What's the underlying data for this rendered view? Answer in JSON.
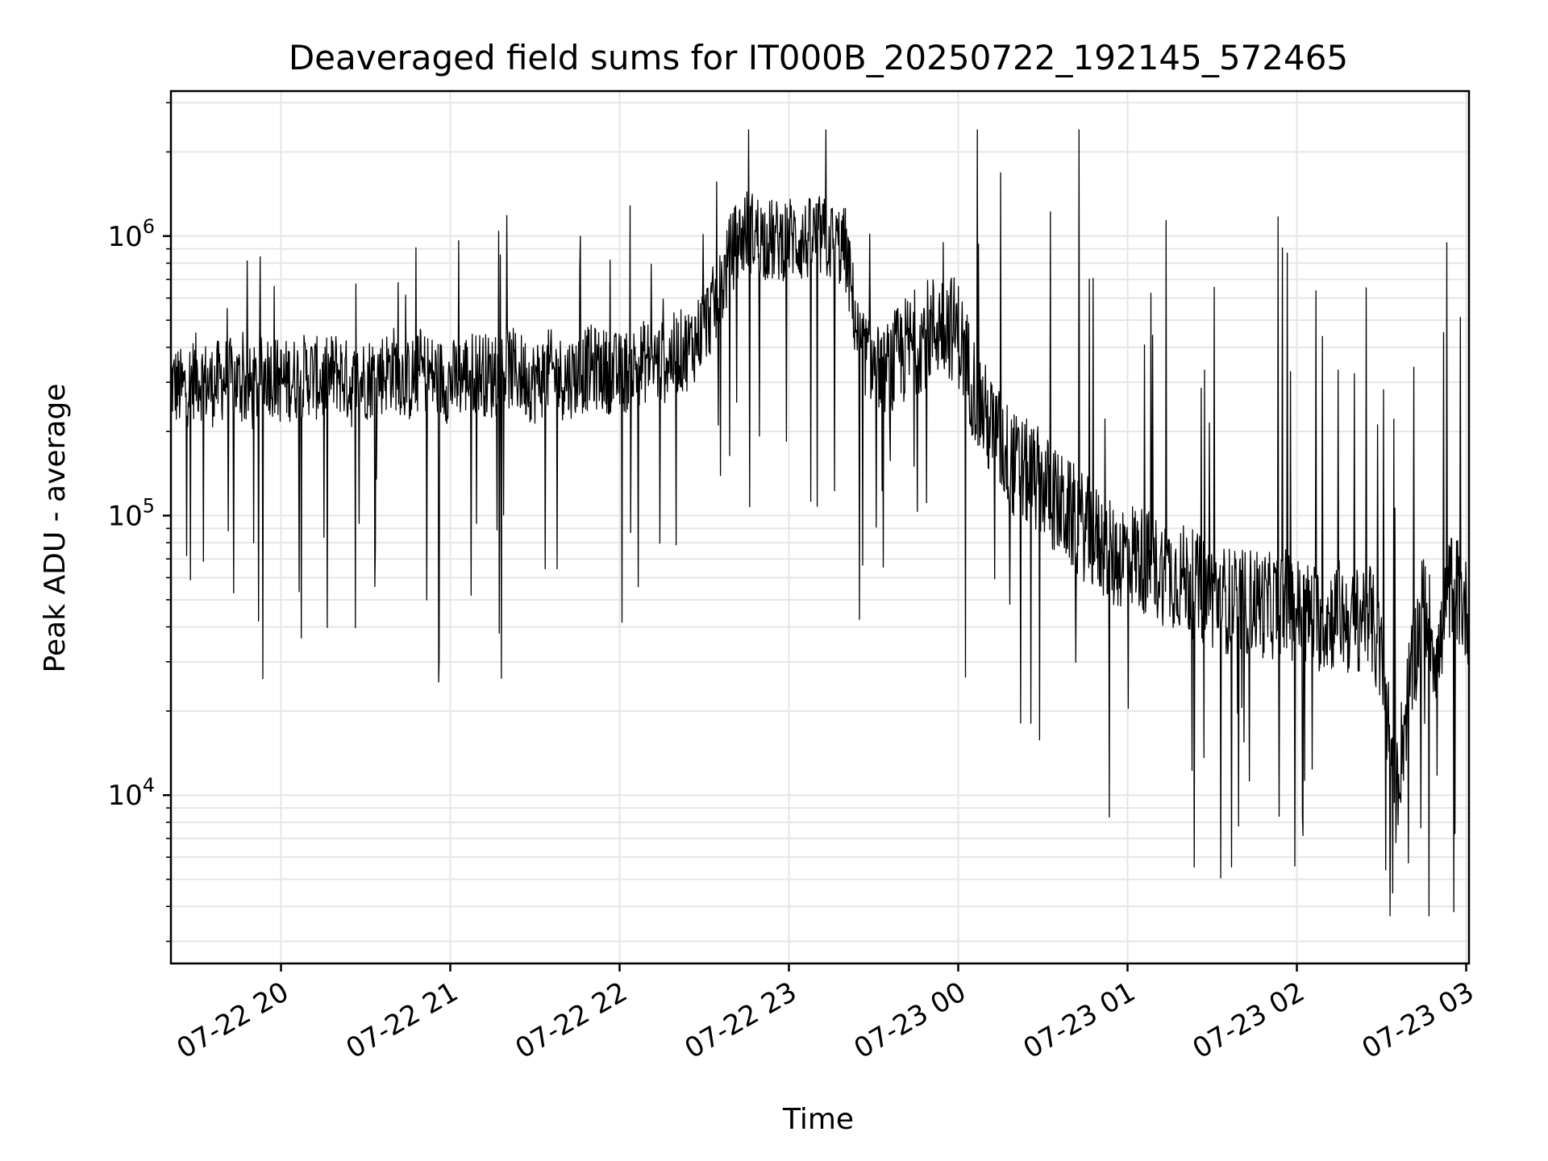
{
  "chart_data": {
    "type": "line",
    "title": "Deaveraged field sums for IT000B_20250722_192145_572465",
    "xlabel": "Time",
    "ylabel": "Peak ADU - average",
    "yscale": "log",
    "ylim": [
      2500,
      3300000
    ],
    "xlim": [
      "2025-07-22 19:21",
      "2025-07-23 03:01"
    ],
    "grid": true,
    "line_color": "#000000",
    "x_ticks": [
      "07-22 20",
      "07-22 21",
      "07-22 22",
      "07-22 23",
      "07-23 00",
      "07-23 01",
      "07-23 02",
      "07-23 03"
    ],
    "y_ticks": [
      {
        "base": "10",
        "exp": "4",
        "value": 10000
      },
      {
        "base": "10",
        "exp": "5",
        "value": 100000
      },
      {
        "base": "10",
        "exp": "6",
        "value": 1000000
      }
    ],
    "series": [
      {
        "x": [
          "2025-07-22 19:21",
          "2025-07-22 19:25",
          "2025-07-22 19:30",
          "2025-07-22 19:35",
          "2025-07-22 19:40",
          "2025-07-22 19:45",
          "2025-07-22 19:50",
          "2025-07-22 19:55",
          "2025-07-22 20:00",
          "2025-07-22 20:05",
          "2025-07-22 20:10",
          "2025-07-22 20:15",
          "2025-07-22 20:20",
          "2025-07-22 20:25",
          "2025-07-22 20:30",
          "2025-07-22 20:35",
          "2025-07-22 20:40",
          "2025-07-22 20:45",
          "2025-07-22 20:50",
          "2025-07-22 20:55",
          "2025-07-22 21:00",
          "2025-07-22 21:05",
          "2025-07-22 21:10",
          "2025-07-22 21:15",
          "2025-07-22 21:20",
          "2025-07-22 21:25",
          "2025-07-22 21:30",
          "2025-07-22 21:35",
          "2025-07-22 21:40",
          "2025-07-22 21:45",
          "2025-07-22 21:50",
          "2025-07-22 21:55",
          "2025-07-22 22:00",
          "2025-07-22 22:05",
          "2025-07-22 22:10",
          "2025-07-22 22:15",
          "2025-07-22 22:20",
          "2025-07-22 22:25",
          "2025-07-22 22:30",
          "2025-07-22 22:35",
          "2025-07-22 22:40",
          "2025-07-22 22:45",
          "2025-07-22 22:50",
          "2025-07-22 22:55",
          "2025-07-22 23:00",
          "2025-07-22 23:05",
          "2025-07-22 23:10",
          "2025-07-22 23:15",
          "2025-07-22 23:20",
          "2025-07-22 23:25",
          "2025-07-22 23:30",
          "2025-07-22 23:35",
          "2025-07-22 23:40",
          "2025-07-22 23:45",
          "2025-07-22 23:50",
          "2025-07-22 23:55",
          "2025-07-23 00:00",
          "2025-07-23 00:05",
          "2025-07-23 00:10",
          "2025-07-23 00:15",
          "2025-07-23 00:20",
          "2025-07-23 00:25",
          "2025-07-23 00:30",
          "2025-07-23 00:35",
          "2025-07-23 00:40",
          "2025-07-23 00:45",
          "2025-07-23 00:50",
          "2025-07-23 00:55",
          "2025-07-23 01:00",
          "2025-07-23 01:05",
          "2025-07-23 01:10",
          "2025-07-23 01:15",
          "2025-07-23 01:20",
          "2025-07-23 01:25",
          "2025-07-23 01:30",
          "2025-07-23 01:35",
          "2025-07-23 01:40",
          "2025-07-23 01:45",
          "2025-07-23 01:50",
          "2025-07-23 01:55",
          "2025-07-23 02:00",
          "2025-07-23 02:05",
          "2025-07-23 02:10",
          "2025-07-23 02:15",
          "2025-07-23 02:20",
          "2025-07-23 02:25",
          "2025-07-23 02:30",
          "2025-07-23 02:35",
          "2025-07-23 02:40",
          "2025-07-23 02:45",
          "2025-07-23 02:50",
          "2025-07-23 02:55",
          "2025-07-23 03:00"
        ],
        "y": [
          300000,
          280000,
          320000,
          290000,
          310000,
          300000,
          280000,
          330000,
          300000,
          310000,
          320000,
          300000,
          330000,
          290000,
          310000,
          320000,
          340000,
          300000,
          330000,
          310000,
          300000,
          320000,
          330000,
          310000,
          340000,
          320000,
          300000,
          330000,
          310000,
          320000,
          340000,
          330000,
          320000,
          340000,
          360000,
          350000,
          380000,
          400000,
          480000,
          600000,
          900000,
          1050000,
          1000000,
          950000,
          1000000,
          950000,
          1000000,
          950000,
          900000,
          400000,
          350000,
          320000,
          380000,
          420000,
          460000,
          500000,
          450000,
          300000,
          220000,
          180000,
          150000,
          140000,
          130000,
          110000,
          100000,
          90000,
          80000,
          70000,
          75000,
          70000,
          65000,
          62000,
          60000,
          55000,
          52000,
          50000,
          48000,
          50000,
          47000,
          50000,
          46000,
          44000,
          42000,
          45000,
          40000,
          48000,
          30000,
          10000,
          25000,
          50000,
          30000,
          60000,
          45000
        ]
      }
    ],
    "spike_extremes": {
      "max": 2400000,
      "min": 3700
    }
  }
}
